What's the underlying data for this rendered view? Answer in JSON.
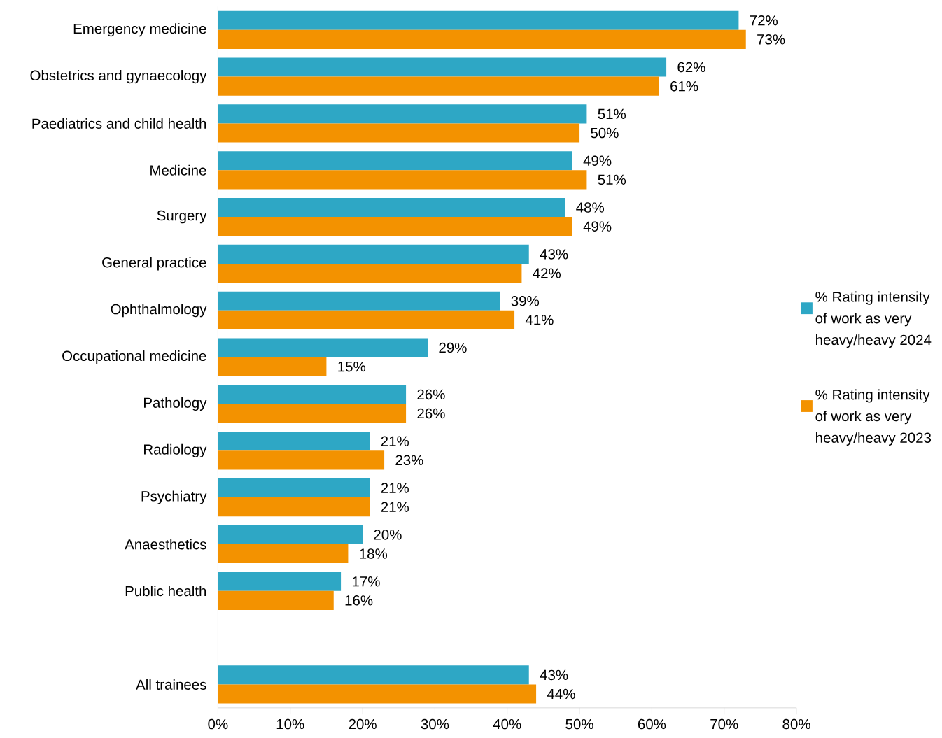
{
  "chart_data": {
    "type": "bar",
    "orientation": "horizontal",
    "categories": [
      "Emergency medicine",
      "Obstetrics and gynaecology",
      "Paediatrics and child health",
      "Medicine",
      "Surgery",
      "General practice",
      "Ophthalmology",
      "Occupational medicine",
      "Pathology",
      "Radiology",
      "Psychiatry",
      "Anaesthetics",
      "Public health",
      null,
      "All trainees"
    ],
    "series": [
      {
        "name": "% Rating intensity of work as very heavy/heavy 2024",
        "color": "#2ea7c5",
        "values": [
          72,
          62,
          51,
          49,
          48,
          43,
          39,
          29,
          26,
          21,
          21,
          20,
          17,
          null,
          43
        ],
        "value_labels": [
          "72%",
          "62%",
          "51%",
          "49%",
          "48%",
          "43%",
          "39%",
          "29%",
          "26%",
          "21%",
          "21%",
          "20%",
          "17%",
          null,
          "43%"
        ]
      },
      {
        "name": "% Rating intensity of work as very heavy/heavy 2023",
        "color": "#f39200",
        "values": [
          73,
          61,
          50,
          51,
          49,
          42,
          41,
          15,
          26,
          23,
          21,
          18,
          16,
          null,
          44
        ],
        "value_labels": [
          "73%",
          "61%",
          "50%",
          "51%",
          "49%",
          "42%",
          "41%",
          "15%",
          "26%",
          "23%",
          "21%",
          "18%",
          "16%",
          null,
          "44%"
        ]
      }
    ],
    "xlim": [
      0,
      80
    ],
    "xticks": [
      {
        "value": 0,
        "label": "0%"
      },
      {
        "value": 10,
        "label": "10%"
      },
      {
        "value": 20,
        "label": "20%"
      },
      {
        "value": 30,
        "label": "30%"
      },
      {
        "value": 40,
        "label": "40%"
      },
      {
        "value": 50,
        "label": "50%"
      },
      {
        "value": 60,
        "label": "60%"
      },
      {
        "value": 70,
        "label": "70%"
      },
      {
        "value": 80,
        "label": "80%"
      }
    ],
    "legend": "right"
  }
}
